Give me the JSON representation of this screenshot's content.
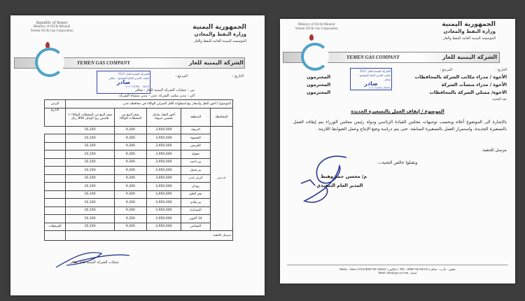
{
  "letterhead": {
    "en_lines": [
      "Republic of Yemen",
      "Ministry of Oil & Mineral",
      "Yemen Oil & Gas Corporation"
    ],
    "ar_lines": [
      "الجمهورية اليمنية",
      "وزارة النفط والمعادن",
      "المؤسسة اليمنية العامة للنفط والغاز"
    ],
    "company_en": "YEMEN GAS COMPANY",
    "company_ar": "الشركة اليمنية للغاز",
    "date_label": "التاريخ :",
    "ref_label": "المرجع :"
  },
  "stamp": {
    "line1": "الشركة اليمنية للغاز Y.G.C",
    "line2": "مكتب المدير العام التنفيذي - صافر",
    "big": "صادر",
    "no_left": "٦٨/١٧",
    "date_left": "٢٠٢٠/١٢/٢٥",
    "no_right": "٣٣/٩٦",
    "date_right": "٢٠٢٠/١٢/٢١"
  },
  "left_doc": {
    "from": "من : عمليات الشركة اليمنية للغاز - صافر",
    "to": "الى : مدير مكتب الشركة عدن - مدير منشأة الشركة",
    "subject": "الموضوع / أجور النقل وأسعار بيع اسطوانة الغاز المنزلي للوكلاء في محافظة عدن",
    "time_header": "الزمن",
    "columns": [
      "المحافظة",
      "المنطقة",
      "أجور النقل شامل تحسين شيولة",
      "سعر البيع من المحطات للوكلاء",
      "سعر البيع من المحطات للوكلاء + هامش ربح الوكيل 800 ريال"
    ],
    "governorate": "عـــدن",
    "side_labels": [
      "التاريخ",
      "المرفقات"
    ],
    "rows": [
      {
        "area": "البريقة",
        "transport": "3,950,000",
        "station_price": "9,300",
        "agent_price": "10,100"
      },
      {
        "area": "الحسوة",
        "transport": "3,950,000",
        "station_price": "9,300",
        "agent_price": "10,100"
      },
      {
        "area": "العريش",
        "transport": "3,950,000",
        "station_price": "9,300",
        "agent_price": "10,100"
      },
      {
        "area": "جعولة",
        "transport": "3,950,000",
        "station_price": "9,300",
        "agent_price": "10,100"
      },
      {
        "area": "بير احمد",
        "transport": "3,950,000",
        "station_price": "9,300",
        "agent_price": "10,100"
      },
      {
        "area": "بير فضل",
        "transport": "3,950,000",
        "station_price": "9,300",
        "agent_price": "10,100"
      },
      {
        "area": "كريتر عدن",
        "transport": "3,950,000",
        "station_price": "9,300",
        "agent_price": "10,100"
      },
      {
        "area": "رودان",
        "transport": "3,950,000",
        "station_price": "9,300",
        "agent_price": "10,100"
      },
      {
        "area": "بحر العلم",
        "transport": "3,950,000",
        "station_price": "9,300",
        "agent_price": "10,100"
      },
      {
        "area": "بير هادي",
        "transport": "3,950,000",
        "station_price": "9,300",
        "agent_price": "10,100"
      },
      {
        "area": "الممدارة",
        "transport": "3,950,000",
        "station_price": "9,300",
        "agent_price": "10,100"
      },
      {
        "area": "14 أكتوبر",
        "transport": "3,950,000",
        "station_price": "9,300",
        "agent_price": "10,100"
      },
      {
        "area": "البساتين",
        "transport": "3,950,000",
        "station_price": "9,300",
        "agent_price": "10,100"
      }
    ],
    "note": "مرسل للتنفيذ",
    "signoff": "عمليات الشركة اليمنية للغاز صافر"
  },
  "right_doc": {
    "addressees": [
      "الأخوة / مدراء مكاتب الشركة بالمحافظات",
      "الأخوة / مدراء منشآت الشركة",
      "الاخوة/ ممثلي الشركة بالمحافظات"
    ],
    "honorifics": [
      "المحترمون",
      "المحترمون",
      "المحترمون"
    ],
    "greeting": "بعد التحية،",
    "subject": "الموضوع / إيقاف العمل بالتسعيرة الجديدة",
    "body": "بالإشارة الى الموضوع أعلاه وبحسب توجيهات مجلس القيادة الرئاسي ودولة رئيس مجلس الوزراء يتم إيقاف العمل بالتسعيرة الجديدة، واستمرار العمل بالتسعيرة السابقة، حتى يتم دراسة وضع الإنتاج وعمل الضوابط اللازمة.",
    "note": "مرسل للتنفيذ.",
    "closing": "وتقبلوا خالص التحية،،،",
    "signer": "م/ محسن حمد وهيط",
    "signer_title": "المدير العام التنفيذي",
    "footer_line1": "Marib – Safer ( FAX:00967-06-330243 ) فاكس | ( TEL : 00967-06-330143 ) تلفون - مأرب - صافر",
    "footer_line2": "Email: info@ygc-ye.com : ايميل"
  }
}
